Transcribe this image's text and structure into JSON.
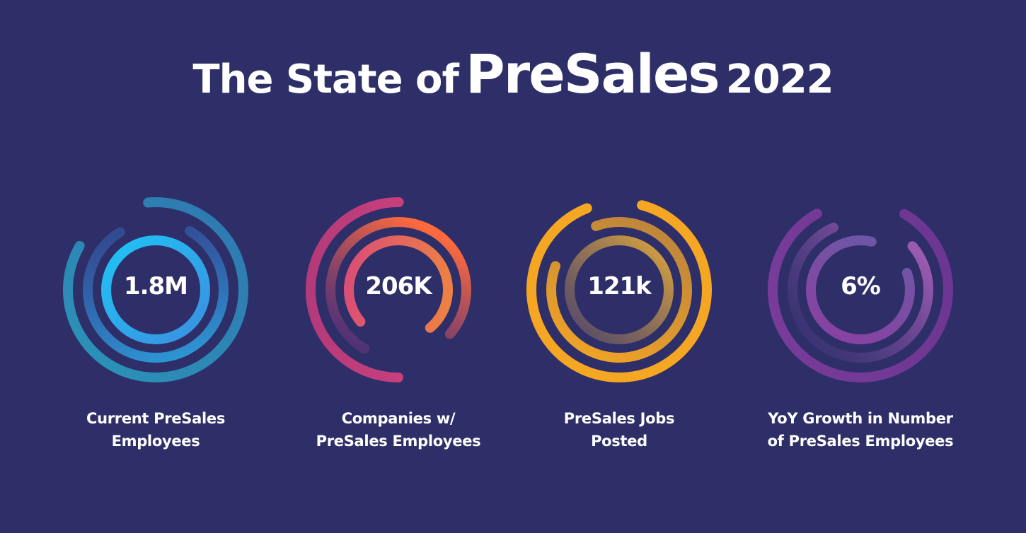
{
  "title": {
    "part1": "The State of",
    "part2": "PreSales",
    "part3": "2022"
  },
  "stats": [
    {
      "value": "1.8M",
      "label_line1": "Current PreSales",
      "label_line2": "Employees",
      "colors": {
        "outer": "#2a9fc0",
        "middle": "#3a86d8",
        "inner": "#1fbcf0"
      }
    },
    {
      "value": "206K",
      "label_line1": "Companies w/",
      "label_line2": "PreSales Employees",
      "colors": {
        "outer": "#d8457e",
        "middle": "#ff6a3d",
        "inner": "#f08a3a"
      }
    },
    {
      "value": "121k",
      "label_line1": "PreSales Jobs",
      "label_line2": "Posted",
      "colors": {
        "outer": "#f5a623",
        "middle": "#f2a52b",
        "inner": "#d9a540"
      }
    },
    {
      "value": "6%",
      "label_line1": "YoY Growth in Number",
      "label_line2": "of PreSales Employees",
      "colors": {
        "outer": "#7a3d9a",
        "middle": "#8a4aa6",
        "inner": "#8b5fae"
      }
    }
  ]
}
